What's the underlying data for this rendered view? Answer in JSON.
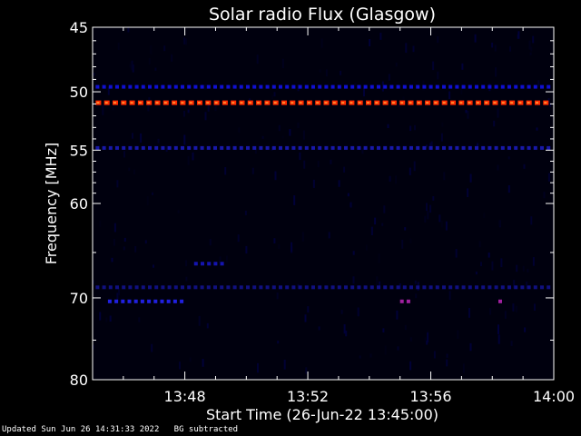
{
  "chart_data": {
    "type": "heatmap",
    "title": "Solar radio Flux (Glasgow)",
    "xlabel": "Start Time (26-Jun-22 13:45:00)",
    "ylabel": "Frequency [MHz]",
    "x_ticks": [
      "13:48",
      "13:52",
      "13:56",
      "14:00"
    ],
    "x_tick_minutes": [
      48,
      52,
      56,
      60
    ],
    "xlim_minutes": [
      45,
      60
    ],
    "y_ticks": [
      45,
      50,
      55,
      60,
      70,
      80
    ],
    "ylim": [
      45,
      80
    ],
    "y_scale": "log",
    "bands": [
      {
        "freq": 49.6,
        "color": "#1010d0",
        "intensity": "low"
      },
      {
        "freq": 50.9,
        "color": "#ff2a00",
        "intensity": "high"
      },
      {
        "freq": 54.8,
        "color": "#1818a8",
        "intensity": "low"
      },
      {
        "freq": 66.2,
        "color": "#1414b0",
        "intensity": "low",
        "t_start": 48.3,
        "t_end": 49.2
      },
      {
        "freq": 68.8,
        "color": "#101080",
        "intensity": "low"
      },
      {
        "freq": 70.4,
        "color": "#2020e0",
        "intensity": "medium",
        "t_start": 45.5,
        "t_end": 48.0
      },
      {
        "freq": 70.4,
        "color": "#a020a0",
        "intensity": "medium",
        "t_start": 55.0,
        "t_end": 55.3
      },
      {
        "freq": 70.4,
        "color": "#a020a0",
        "intensity": "medium",
        "t_start": 58.2,
        "t_end": 58.4
      }
    ]
  },
  "footer": "Updated Sun Jun 26 14:31:33 2022   BG subtracted"
}
